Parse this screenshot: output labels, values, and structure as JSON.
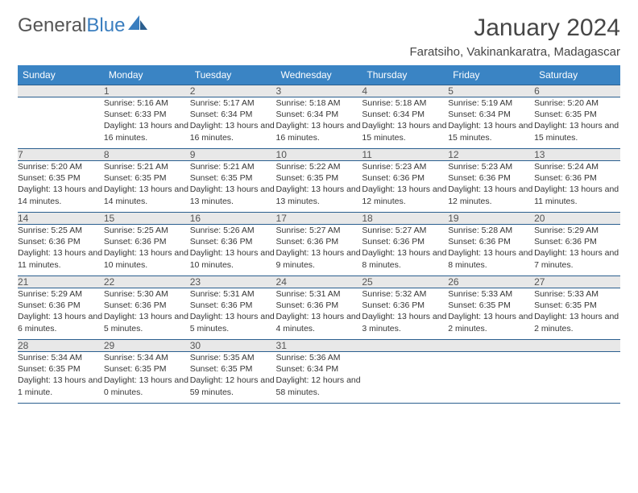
{
  "logo": {
    "text1": "General",
    "text2": "Blue"
  },
  "title": "January 2024",
  "location": "Faratsiho, Vakinankaratra, Madagascar",
  "colors": {
    "header_bg": "#3a84c4",
    "header_text": "#ffffff",
    "daynum_bg": "#e8e8e8",
    "border": "#2b5f8f",
    "logo_blue": "#3a7ebf",
    "body_text": "#363636"
  },
  "day_headers": [
    "Sunday",
    "Monday",
    "Tuesday",
    "Wednesday",
    "Thursday",
    "Friday",
    "Saturday"
  ],
  "weeks": [
    {
      "nums": [
        "",
        "1",
        "2",
        "3",
        "4",
        "5",
        "6"
      ],
      "details": [
        "",
        "Sunrise: 5:16 AM\nSunset: 6:33 PM\nDaylight: 13 hours and 16 minutes.",
        "Sunrise: 5:17 AM\nSunset: 6:34 PM\nDaylight: 13 hours and 16 minutes.",
        "Sunrise: 5:18 AM\nSunset: 6:34 PM\nDaylight: 13 hours and 16 minutes.",
        "Sunrise: 5:18 AM\nSunset: 6:34 PM\nDaylight: 13 hours and 15 minutes.",
        "Sunrise: 5:19 AM\nSunset: 6:34 PM\nDaylight: 13 hours and 15 minutes.",
        "Sunrise: 5:20 AM\nSunset: 6:35 PM\nDaylight: 13 hours and 15 minutes."
      ]
    },
    {
      "nums": [
        "7",
        "8",
        "9",
        "10",
        "11",
        "12",
        "13"
      ],
      "details": [
        "Sunrise: 5:20 AM\nSunset: 6:35 PM\nDaylight: 13 hours and 14 minutes.",
        "Sunrise: 5:21 AM\nSunset: 6:35 PM\nDaylight: 13 hours and 14 minutes.",
        "Sunrise: 5:21 AM\nSunset: 6:35 PM\nDaylight: 13 hours and 13 minutes.",
        "Sunrise: 5:22 AM\nSunset: 6:35 PM\nDaylight: 13 hours and 13 minutes.",
        "Sunrise: 5:23 AM\nSunset: 6:36 PM\nDaylight: 13 hours and 12 minutes.",
        "Sunrise: 5:23 AM\nSunset: 6:36 PM\nDaylight: 13 hours and 12 minutes.",
        "Sunrise: 5:24 AM\nSunset: 6:36 PM\nDaylight: 13 hours and 11 minutes."
      ]
    },
    {
      "nums": [
        "14",
        "15",
        "16",
        "17",
        "18",
        "19",
        "20"
      ],
      "details": [
        "Sunrise: 5:25 AM\nSunset: 6:36 PM\nDaylight: 13 hours and 11 minutes.",
        "Sunrise: 5:25 AM\nSunset: 6:36 PM\nDaylight: 13 hours and 10 minutes.",
        "Sunrise: 5:26 AM\nSunset: 6:36 PM\nDaylight: 13 hours and 10 minutes.",
        "Sunrise: 5:27 AM\nSunset: 6:36 PM\nDaylight: 13 hours and 9 minutes.",
        "Sunrise: 5:27 AM\nSunset: 6:36 PM\nDaylight: 13 hours and 8 minutes.",
        "Sunrise: 5:28 AM\nSunset: 6:36 PM\nDaylight: 13 hours and 8 minutes.",
        "Sunrise: 5:29 AM\nSunset: 6:36 PM\nDaylight: 13 hours and 7 minutes."
      ]
    },
    {
      "nums": [
        "21",
        "22",
        "23",
        "24",
        "25",
        "26",
        "27"
      ],
      "details": [
        "Sunrise: 5:29 AM\nSunset: 6:36 PM\nDaylight: 13 hours and 6 minutes.",
        "Sunrise: 5:30 AM\nSunset: 6:36 PM\nDaylight: 13 hours and 5 minutes.",
        "Sunrise: 5:31 AM\nSunset: 6:36 PM\nDaylight: 13 hours and 5 minutes.",
        "Sunrise: 5:31 AM\nSunset: 6:36 PM\nDaylight: 13 hours and 4 minutes.",
        "Sunrise: 5:32 AM\nSunset: 6:36 PM\nDaylight: 13 hours and 3 minutes.",
        "Sunrise: 5:33 AM\nSunset: 6:35 PM\nDaylight: 13 hours and 2 minutes.",
        "Sunrise: 5:33 AM\nSunset: 6:35 PM\nDaylight: 13 hours and 2 minutes."
      ]
    },
    {
      "nums": [
        "28",
        "29",
        "30",
        "31",
        "",
        "",
        ""
      ],
      "details": [
        "Sunrise: 5:34 AM\nSunset: 6:35 PM\nDaylight: 13 hours and 1 minute.",
        "Sunrise: 5:34 AM\nSunset: 6:35 PM\nDaylight: 13 hours and 0 minutes.",
        "Sunrise: 5:35 AM\nSunset: 6:35 PM\nDaylight: 12 hours and 59 minutes.",
        "Sunrise: 5:36 AM\nSunset: 6:34 PM\nDaylight: 12 hours and 58 minutes.",
        "",
        "",
        ""
      ]
    }
  ]
}
